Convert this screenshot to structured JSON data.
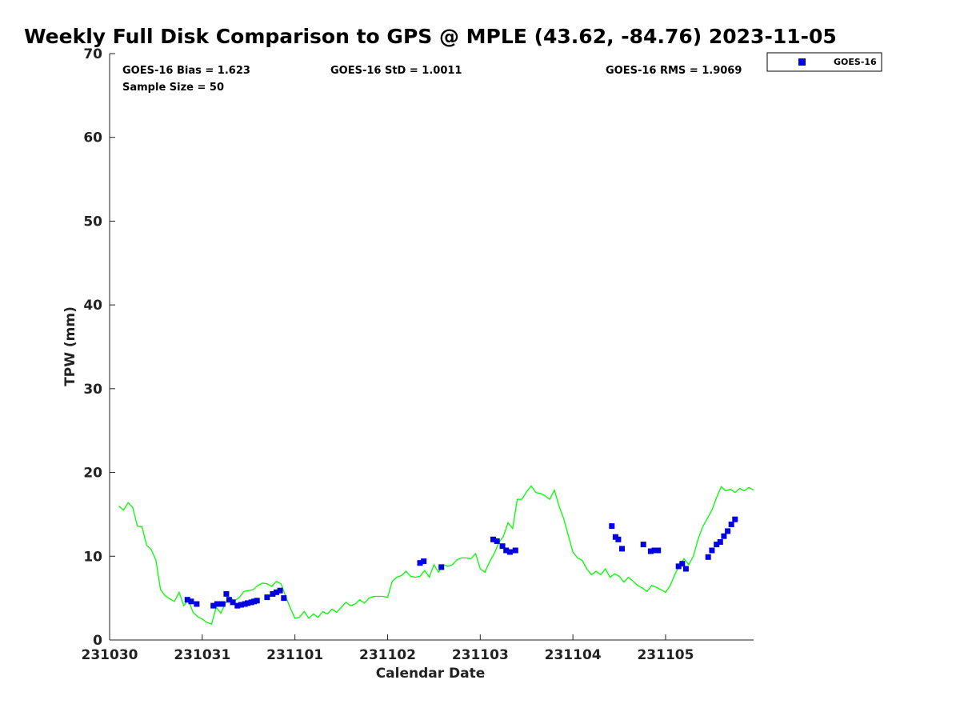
{
  "chart_data": {
    "type": "scatter",
    "title": "Weekly Full Disk Comparison to GPS @ MPLE (43.62, -84.76) 2023-11-05",
    "xlabel": "Calendar Date",
    "ylabel": "TPW (mm)",
    "xlim": [
      0,
      6.95
    ],
    "ylim": [
      0,
      70
    ],
    "x_tick_values": [
      0,
      1,
      2,
      3,
      4,
      5,
      6
    ],
    "x_tick_labels": [
      "231030",
      "231031",
      "231101",
      "231102",
      "231103",
      "231104",
      "231105"
    ],
    "y_ticks": [
      0,
      10,
      20,
      30,
      40,
      50,
      60,
      70
    ],
    "grid": false,
    "legend_position": "outside-top-right",
    "stats": {
      "bias": "GOES-16 Bias = 1.623",
      "std": "GOES-16 StD = 1.0011",
      "rms": "GOES-16 RMS = 1.9069",
      "sample_size": "Sample Size = 50"
    },
    "series": [
      {
        "name": "GOES-16",
        "kind": "scatter",
        "color": "#0000e0",
        "marker": "square",
        "x": [
          0.84,
          0.88,
          0.94,
          1.12,
          1.16,
          1.19,
          1.22,
          1.26,
          1.29,
          1.33,
          1.38,
          1.42,
          1.46,
          1.49,
          1.53,
          1.56,
          1.59,
          1.7,
          1.76,
          1.8,
          1.84,
          1.88,
          3.35,
          3.39,
          3.58,
          4.14,
          4.18,
          4.24,
          4.28,
          4.32,
          4.38,
          5.42,
          5.46,
          5.49,
          5.53,
          5.76,
          5.84,
          5.88,
          5.92,
          6.14,
          6.18,
          6.22,
          6.46,
          6.5,
          6.55,
          6.59,
          6.63,
          6.67,
          6.71,
          6.75
        ],
        "y": [
          4.8,
          4.6,
          4.3,
          4.1,
          4.3,
          4.3,
          4.3,
          5.5,
          4.8,
          4.5,
          4.1,
          4.2,
          4.3,
          4.4,
          4.5,
          4.6,
          4.7,
          5.1,
          5.5,
          5.7,
          5.9,
          5.0,
          9.2,
          9.4,
          8.7,
          12.0,
          11.8,
          11.2,
          10.7,
          10.5,
          10.7,
          13.6,
          12.3,
          12.0,
          10.9,
          11.4,
          10.6,
          10.7,
          10.7,
          8.8,
          9.1,
          8.5,
          9.9,
          10.7,
          11.4,
          11.7,
          12.4,
          13.0,
          13.8,
          14.4
        ]
      },
      {
        "kind": "line",
        "color": "#00ff00",
        "x": [
          0.1,
          0.15,
          0.2,
          0.25,
          0.3,
          0.35,
          0.4,
          0.45,
          0.5,
          0.55,
          0.6,
          0.65,
          0.7,
          0.75,
          0.8,
          0.85,
          0.9,
          0.95,
          1.0,
          1.05,
          1.1,
          1.15,
          1.2,
          1.25,
          1.3,
          1.35,
          1.4,
          1.45,
          1.5,
          1.55,
          1.6,
          1.65,
          1.7,
          1.75,
          1.8,
          1.85,
          1.9,
          1.95,
          2.0,
          2.05,
          2.1,
          2.15,
          2.2,
          2.25,
          2.3,
          2.35,
          2.4,
          2.45,
          2.5,
          2.55,
          2.6,
          2.65,
          2.7,
          2.75,
          2.8,
          2.85,
          2.9,
          2.95,
          3.0,
          3.05,
          3.1,
          3.15,
          3.2,
          3.25,
          3.3,
          3.35,
          3.4,
          3.45,
          3.5,
          3.55,
          3.6,
          3.65,
          3.7,
          3.75,
          3.8,
          3.85,
          3.9,
          3.95,
          4.0,
          4.05,
          4.1,
          4.15,
          4.2,
          4.25,
          4.3,
          4.35,
          4.4,
          4.45,
          4.5,
          4.55,
          4.6,
          4.65,
          4.7,
          4.75,
          4.8,
          4.85,
          4.9,
          4.95,
          5.0,
          5.05,
          5.1,
          5.15,
          5.2,
          5.25,
          5.3,
          5.35,
          5.4,
          5.45,
          5.5,
          5.55,
          5.6,
          5.65,
          5.7,
          5.75,
          5.8,
          5.85,
          5.9,
          5.95,
          6.0,
          6.05,
          6.1,
          6.15,
          6.2,
          6.25,
          6.3,
          6.35,
          6.4,
          6.45,
          6.5,
          6.55,
          6.6,
          6.65,
          6.7,
          6.75,
          6.8,
          6.85,
          6.9,
          6.95
        ],
        "y": [
          16.0,
          15.5,
          16.4,
          15.8,
          13.6,
          13.5,
          11.3,
          10.8,
          9.5,
          6.0,
          5.3,
          4.9,
          4.6,
          5.7,
          4.1,
          4.8,
          3.3,
          2.8,
          2.5,
          2.1,
          1.9,
          3.9,
          3.2,
          4.4,
          5.0,
          4.7,
          5.1,
          5.8,
          5.9,
          6.0,
          6.5,
          6.8,
          6.7,
          6.4,
          7.0,
          6.7,
          5.2,
          3.8,
          2.6,
          2.7,
          3.4,
          2.6,
          3.1,
          2.7,
          3.4,
          3.1,
          3.7,
          3.3,
          3.9,
          4.5,
          4.1,
          4.3,
          4.8,
          4.4,
          5.0,
          5.2,
          5.2,
          5.2,
          5.1,
          7.0,
          7.5,
          7.7,
          8.2,
          7.6,
          7.5,
          7.6,
          8.3,
          7.5,
          9.0,
          8.1,
          9.0,
          8.8,
          9.0,
          9.6,
          9.8,
          9.8,
          9.7,
          10.3,
          8.5,
          8.1,
          9.3,
          10.3,
          11.6,
          12.4,
          14.0,
          13.3,
          16.8,
          16.8,
          17.7,
          18.4,
          17.6,
          17.5,
          17.2,
          16.8,
          17.9,
          16.0,
          14.5,
          12.5,
          10.5,
          9.8,
          9.5,
          8.5,
          7.8,
          8.2,
          7.8,
          8.5,
          7.5,
          7.9,
          7.6,
          6.9,
          7.5,
          7.0,
          6.5,
          6.2,
          5.8,
          6.5,
          6.3,
          6.0,
          5.7,
          6.5,
          7.8,
          8.9,
          9.7,
          9.0,
          10.0,
          12.0,
          13.5,
          14.5,
          15.5,
          17.0,
          18.3,
          17.8,
          18.0,
          17.6,
          18.1,
          17.8,
          18.2,
          17.9
        ],
        "note": "GPS reference trace (unlabeled)"
      }
    ]
  }
}
